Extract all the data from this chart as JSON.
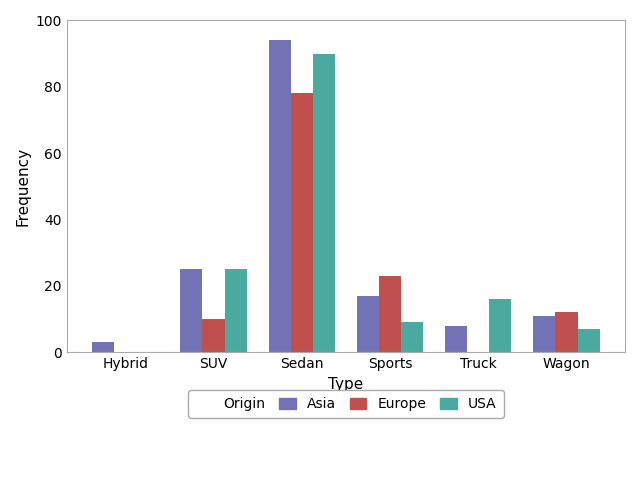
{
  "categories": [
    "Hybrid",
    "SUV",
    "Sedan",
    "Sports",
    "Truck",
    "Wagon"
  ],
  "series": {
    "Asia": [
      3,
      25,
      94,
      17,
      8,
      11
    ],
    "Europe": [
      0,
      10,
      78,
      23,
      0,
      12
    ],
    "USA": [
      0,
      25,
      90,
      9,
      16,
      7
    ]
  },
  "colors": {
    "Asia": "#7472B7",
    "Europe": "#C0504D",
    "USA": "#4BAAA0"
  },
  "legend_title": "Origin",
  "xlabel": "Type",
  "ylabel": "Frequency",
  "ylim": [
    0,
    100
  ],
  "yticks": [
    0,
    20,
    40,
    60,
    80,
    100
  ],
  "title_fontsize": 11,
  "axis_fontsize": 11,
  "tick_fontsize": 10,
  "legend_fontsize": 10,
  "bar_width": 0.25,
  "figure_width": 6.4,
  "figure_height": 4.8,
  "dpi": 100,
  "bg_color": "#FFFFFF",
  "plot_bg_color": "#FFFFFF",
  "border_color": "#AAAAAA"
}
